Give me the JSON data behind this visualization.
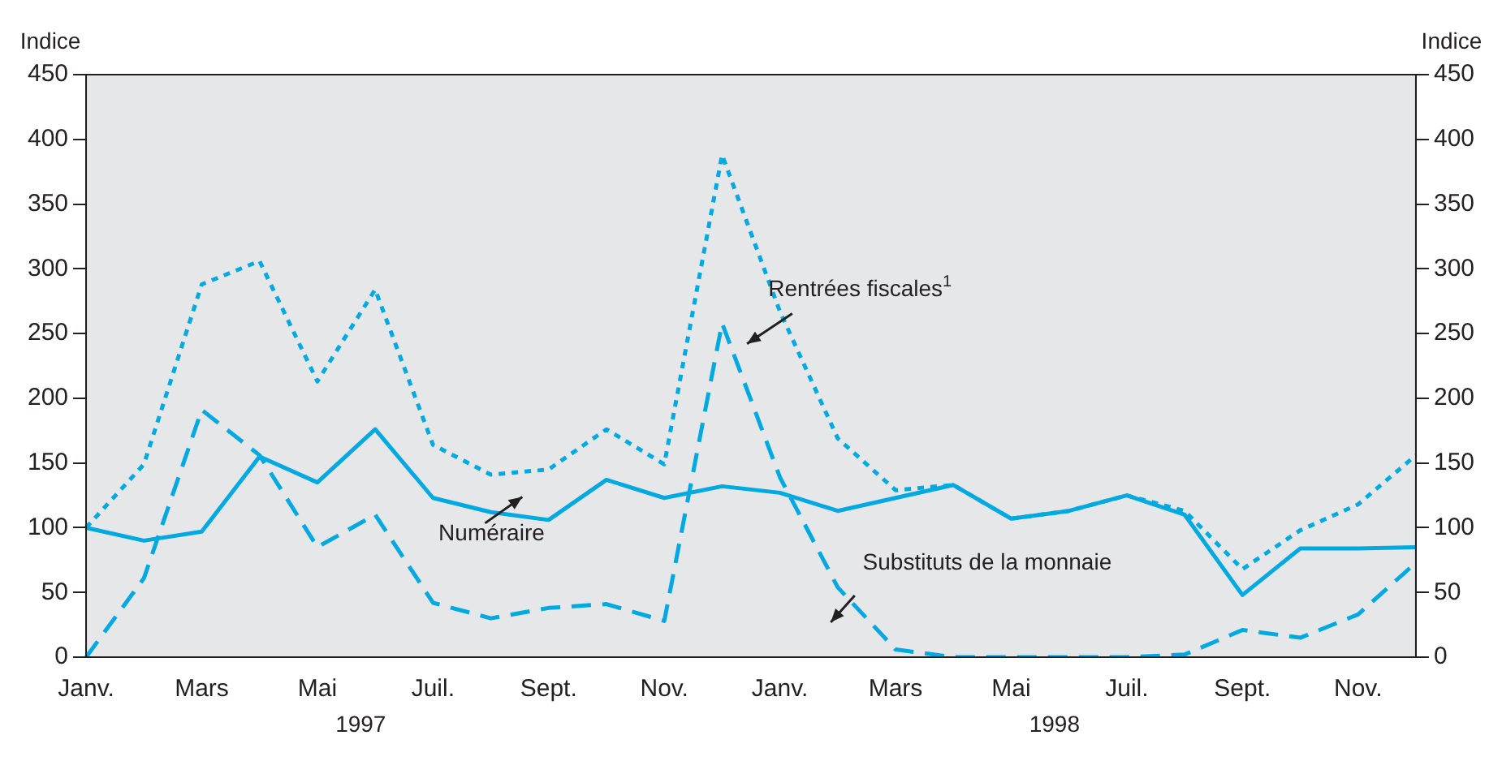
{
  "chart_data": {
    "type": "line",
    "ylabel": "Indice",
    "y2label": "Indice",
    "categories": [
      "Janv.",
      null,
      "Mars",
      null,
      "Mai",
      null,
      "Juil.",
      null,
      "Sept.",
      null,
      "Nov.",
      null,
      "Janv.",
      null,
      "Mars",
      null,
      "Mai",
      null,
      "Juil.",
      null,
      "Sept.",
      null,
      "Nov.",
      null
    ],
    "series": [
      {
        "name": "Numéraire",
        "color": "#00a9e0",
        "line_style": "solid",
        "values": [
          100,
          90,
          97,
          155,
          135,
          176,
          123,
          112,
          106,
          137,
          123,
          132,
          127,
          113,
          123,
          133,
          107,
          113,
          125,
          110,
          48,
          84,
          84,
          85
        ]
      },
      {
        "name": "Rentrées fiscales$^{1}$",
        "color": "#00a9e0",
        "line_style": "dotted",
        "values": [
          100,
          149,
          288,
          306,
          213,
          284,
          164,
          141,
          145,
          176,
          149,
          388,
          267,
          169,
          129,
          133,
          107,
          113,
          125,
          113,
          68,
          98,
          118,
          156
        ]
      },
      {
        "name": "Substituts de la monnaie",
        "color": "#00a9e0",
        "line_style": "dashed",
        "values": [
          0,
          61,
          191,
          156,
          85,
          110,
          42,
          30,
          38,
          41,
          28,
          258,
          139,
          54,
          6,
          0,
          0,
          0,
          0,
          2,
          21,
          15,
          33,
          73
        ]
      }
    ],
    "annotations": [
      "1997",
      "1998"
    ],
    "ylim": [
      0,
      450
    ],
    "yticks": [
      0,
      50,
      100,
      150,
      200,
      250,
      300,
      350,
      400,
      450
    ],
    "y2lim": [
      0,
      450
    ],
    "y2ticks": [
      0,
      50,
      100,
      150,
      200,
      250,
      300,
      350,
      400,
      450
    ],
    "grid": false,
    "legend": false,
    "marker": "none"
  }
}
